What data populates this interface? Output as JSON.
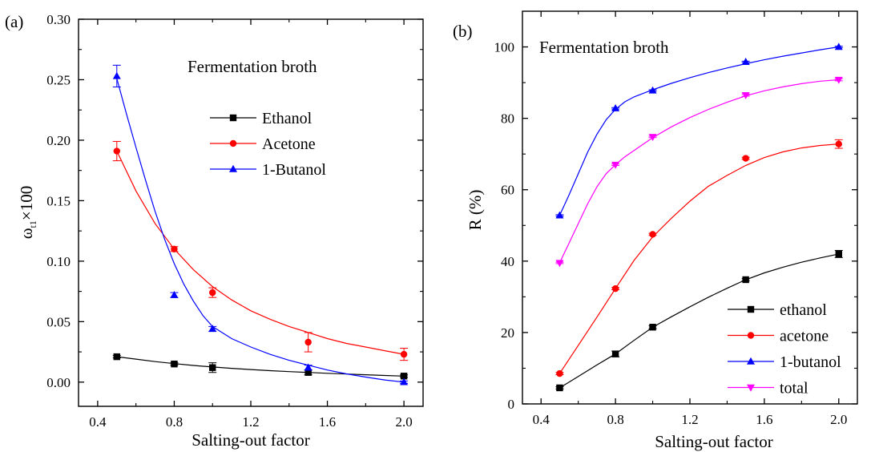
{
  "chart_data": [
    {
      "type": "line",
      "panel_label": "(a)",
      "title": "",
      "annotation": "Fermentation broth",
      "xlabel": "Salting-out factor",
      "ylabel_main": "ω",
      "ylabel_sub": "t1",
      "ylabel_tail": "×100",
      "xlim": [
        0.3,
        2.1
      ],
      "ylim": [
        -0.02,
        0.3
      ],
      "x_ticks": [
        0.4,
        0.8,
        1.2,
        1.6,
        2.0
      ],
      "x_tick_labels": [
        "0.4",
        "0.8",
        "1.2",
        "1.6",
        "2.0"
      ],
      "y_ticks": [
        0.0,
        0.05,
        0.1,
        0.15,
        0.2,
        0.25,
        0.3
      ],
      "y_tick_labels": [
        "0.00",
        "0.05",
        "0.10",
        "0.15",
        "0.20",
        "0.25",
        "0.30"
      ],
      "legend_position": "center-right",
      "series": [
        {
          "name": "Ethanol",
          "color": "#000000",
          "marker": "square",
          "x": [
            0.5,
            0.8,
            1.0,
            1.5,
            2.0
          ],
          "y": [
            0.021,
            0.015,
            0.012,
            0.008,
            0.005
          ],
          "err": [
            0.001,
            0.001,
            0.004,
            0.002,
            0.001
          ],
          "fit_x": [
            0.5,
            0.6,
            0.7,
            0.8,
            0.9,
            1.0,
            1.1,
            1.2,
            1.3,
            1.4,
            1.5,
            1.6,
            1.7,
            1.8,
            1.9,
            2.0
          ],
          "fit_y": [
            0.021,
            0.019,
            0.017,
            0.0153,
            0.0138,
            0.0125,
            0.0114,
            0.0104,
            0.0095,
            0.0087,
            0.008,
            0.0073,
            0.0067,
            0.0061,
            0.0055,
            0.005
          ]
        },
        {
          "name": "Acetone",
          "color": "#ff0000",
          "marker": "circle",
          "x": [
            0.5,
            0.8,
            1.0,
            1.5,
            2.0
          ],
          "y": [
            0.191,
            0.11,
            0.074,
            0.033,
            0.023
          ],
          "err": [
            0.008,
            0.002,
            0.004,
            0.008,
            0.005
          ],
          "fit_x": [
            0.5,
            0.6,
            0.7,
            0.8,
            0.9,
            1.0,
            1.1,
            1.2,
            1.3,
            1.4,
            1.5,
            1.6,
            1.7,
            1.8,
            1.9,
            2.0
          ],
          "fit_y": [
            0.191,
            0.158,
            0.131,
            0.11,
            0.093,
            0.079,
            0.068,
            0.059,
            0.052,
            0.046,
            0.041,
            0.036,
            0.032,
            0.029,
            0.026,
            0.023
          ]
        },
        {
          "name": "1-Butanol",
          "color": "#0000ff",
          "marker": "triangle",
          "x": [
            0.5,
            0.8,
            1.0,
            1.5,
            2.0
          ],
          "y": [
            0.253,
            0.072,
            0.044,
            0.012,
            0.0
          ],
          "err": [
            0.009,
            0.002,
            0.002,
            0.002,
            0.001
          ],
          "fit_x": [
            0.5,
            0.55,
            0.6,
            0.65,
            0.7,
            0.75,
            0.8,
            0.85,
            0.9,
            0.95,
            1.0,
            1.1,
            1.2,
            1.3,
            1.4,
            1.5,
            1.6,
            1.7,
            1.8,
            1.9,
            2.0
          ],
          "fit_y": [
            0.251,
            0.222,
            0.194,
            0.167,
            0.141,
            0.118,
            0.098,
            0.081,
            0.067,
            0.055,
            0.046,
            0.036,
            0.029,
            0.023,
            0.018,
            0.014,
            0.01,
            0.0068,
            0.0042,
            0.0018,
            0.0
          ]
        }
      ]
    },
    {
      "type": "line",
      "panel_label": "(b)",
      "title": "",
      "annotation": "Fermentation broth",
      "xlabel": "Salting-out factor",
      "ylabel": "R (%)",
      "xlim": [
        0.3,
        2.1
      ],
      "ylim": [
        0,
        110
      ],
      "x_ticks": [
        0.4,
        0.8,
        1.2,
        1.6,
        2.0
      ],
      "x_tick_labels": [
        "0.4",
        "0.8",
        "1.2",
        "1.6",
        "2.0"
      ],
      "y_ticks": [
        0,
        20,
        40,
        60,
        80,
        100
      ],
      "y_tick_labels": [
        "0",
        "20",
        "40",
        "60",
        "80",
        "100"
      ],
      "legend_position": "bottom-right",
      "series": [
        {
          "name": "ethanol",
          "color": "#000000",
          "marker": "square",
          "x": [
            0.5,
            0.8,
            1.0,
            1.5,
            2.0
          ],
          "y": [
            4.5,
            14.0,
            21.5,
            34.8,
            42.0
          ],
          "err": [
            0.3,
            0.8,
            0.4,
            0.3,
            1.0
          ],
          "fit_x": [
            0.5,
            0.6,
            0.7,
            0.8,
            0.9,
            1.0,
            1.1,
            1.2,
            1.3,
            1.4,
            1.5,
            1.6,
            1.7,
            1.8,
            1.9,
            2.0
          ],
          "fit_y": [
            4.5,
            7.7,
            10.9,
            14.0,
            17.8,
            21.5,
            24.4,
            27.2,
            29.9,
            32.4,
            34.8,
            36.7,
            38.3,
            39.7,
            40.9,
            42.0
          ]
        },
        {
          "name": "acetone",
          "color": "#ff0000",
          "marker": "circle",
          "x": [
            0.5,
            0.8,
            1.0,
            1.5,
            2.0
          ],
          "y": [
            8.5,
            32.3,
            47.5,
            68.8,
            72.8
          ],
          "err": [
            0.3,
            0.3,
            0.3,
            0.3,
            1.2
          ],
          "fit_x": [
            0.5,
            0.6,
            0.7,
            0.8,
            0.9,
            1.0,
            1.1,
            1.2,
            1.3,
            1.4,
            1.5,
            1.6,
            1.7,
            1.8,
            1.9,
            2.0
          ],
          "fit_y": [
            8.5,
            16.4,
            24.3,
            32.3,
            40.2,
            46.8,
            52.0,
            56.8,
            61.0,
            64.0,
            66.8,
            69.0,
            70.6,
            71.7,
            72.4,
            72.8
          ]
        },
        {
          "name": "1-butanol",
          "color": "#0000ff",
          "marker": "triangle",
          "x": [
            0.5,
            0.8,
            1.0,
            1.5,
            2.0
          ],
          "y": [
            52.8,
            82.8,
            87.8,
            95.8,
            100.0
          ],
          "err": [
            0.2,
            0.2,
            0.2,
            0.2,
            0.2
          ],
          "fit_x": [
            0.5,
            0.55,
            0.6,
            0.65,
            0.7,
            0.75,
            0.8,
            0.85,
            0.9,
            1.0,
            1.1,
            1.2,
            1.3,
            1.4,
            1.5,
            1.6,
            1.7,
            1.8,
            1.9,
            2.0
          ],
          "fit_y": [
            52.8,
            58.5,
            64.5,
            70.5,
            75.5,
            79.6,
            82.5,
            84.6,
            86.0,
            88.0,
            89.8,
            91.4,
            92.8,
            94.1,
            95.3,
            96.4,
            97.4,
            98.3,
            99.2,
            100.0
          ]
        },
        {
          "name": "total",
          "color": "#ff00ff",
          "marker": "triangle-down",
          "x": [
            0.5,
            0.8,
            1.0,
            1.5,
            2.0
          ],
          "y": [
            39.5,
            67.0,
            74.8,
            86.5,
            90.8
          ],
          "err": [
            0.2,
            0.2,
            0.2,
            0.3,
            0.3
          ],
          "fit_x": [
            0.5,
            0.55,
            0.6,
            0.65,
            0.7,
            0.75,
            0.8,
            0.85,
            0.9,
            1.0,
            1.1,
            1.2,
            1.3,
            1.4,
            1.5,
            1.6,
            1.7,
            1.8,
            1.9,
            2.0
          ],
          "fit_y": [
            39.5,
            45.0,
            50.5,
            56.0,
            60.8,
            64.5,
            67.0,
            69.2,
            71.0,
            74.6,
            77.6,
            80.2,
            82.5,
            84.5,
            86.3,
            87.7,
            88.8,
            89.7,
            90.4,
            90.8
          ]
        }
      ]
    }
  ]
}
